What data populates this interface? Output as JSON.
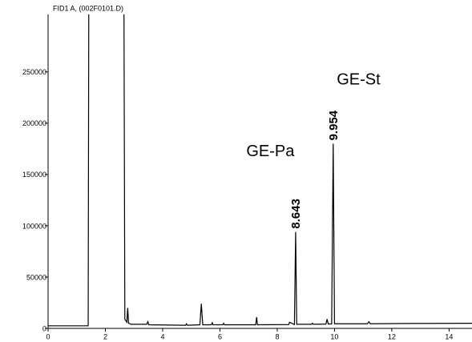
{
  "chart_data": {
    "type": "line",
    "title": "FID1 A,  (002F0101.D)",
    "x": [
      0,
      1.4,
      1.42,
      2.0,
      2.65,
      2.68,
      2.75,
      2.78,
      2.81,
      2.9,
      3.45,
      3.48,
      3.52,
      4.8,
      4.83,
      4.86,
      5.3,
      5.35,
      5.4,
      5.7,
      5.73,
      5.76,
      6.1,
      6.13,
      6.16,
      7.25,
      7.28,
      7.31,
      8.4,
      8.43,
      8.6,
      8.643,
      8.68,
      9.2,
      9.23,
      9.26,
      9.7,
      9.74,
      9.78,
      9.9,
      9.954,
      10.0,
      11.15,
      11.2,
      11.25,
      12.5,
      14.84
    ],
    "series": [
      {
        "color": "#000000",
        "values": [
          2500,
          2500,
          306000,
          null,
          306000,
          9000,
          6000,
          20000,
          5000,
          4000,
          4000,
          6500,
          3500,
          3000,
          4500,
          3000,
          3500,
          24000,
          3500,
          3500,
          5500,
          3500,
          3500,
          5000,
          3500,
          3500,
          11000,
          3500,
          3700,
          6000,
          3800,
          94000,
          4000,
          4000,
          5000,
          4000,
          4200,
          9000,
          4300,
          4300,
          180000,
          4500,
          4500,
          6500,
          4500,
          4800,
          5000
        ]
      }
    ],
    "xlim": [
      0,
      14.8
    ],
    "ylim": [
      0,
      306000
    ],
    "xticks": [
      0,
      2,
      4,
      6,
      8,
      10,
      12,
      14
    ],
    "yticks": [
      0,
      50000,
      100000,
      150000,
      200000,
      250000
    ],
    "annotations": [
      {
        "text": "8.643",
        "x": 8.643,
        "y": 94000,
        "rotated": true
      },
      {
        "text": "9.954",
        "x": 9.954,
        "y": 180000,
        "rotated": true
      },
      {
        "text": "GE-Pa",
        "x": 7.76,
        "y": 172000,
        "rotated": false
      },
      {
        "text": "GE-St",
        "x": 10.84,
        "y": 242000,
        "rotated": false
      }
    ]
  }
}
